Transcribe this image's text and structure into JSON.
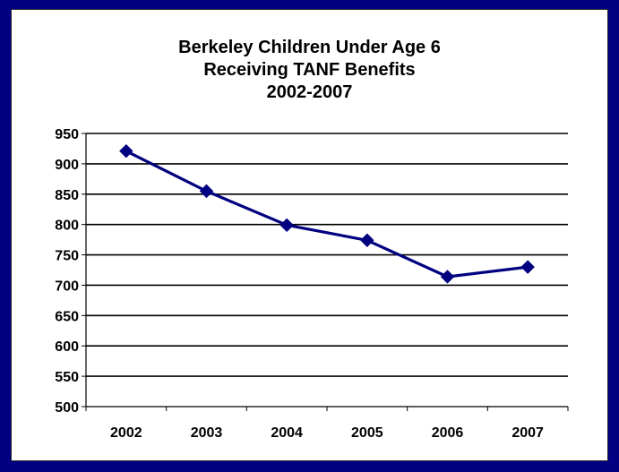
{
  "chart_data": {
    "type": "line",
    "title_lines": [
      "Berkeley Children Under Age 6",
      "Receiving TANF Benefits",
      "2002-2007"
    ],
    "categories": [
      "2002",
      "2003",
      "2004",
      "2005",
      "2006",
      "2007"
    ],
    "series": [
      {
        "values": [
          921,
          855,
          799,
          774,
          714,
          730
        ]
      }
    ],
    "ylim": [
      500,
      950
    ],
    "yticks": [
      500,
      550,
      600,
      650,
      700,
      750,
      800,
      850,
      900,
      950
    ],
    "grid": true,
    "legend": "none",
    "colors": {
      "frame": "#000080",
      "series": "#000080",
      "gridline": "#000000"
    }
  }
}
